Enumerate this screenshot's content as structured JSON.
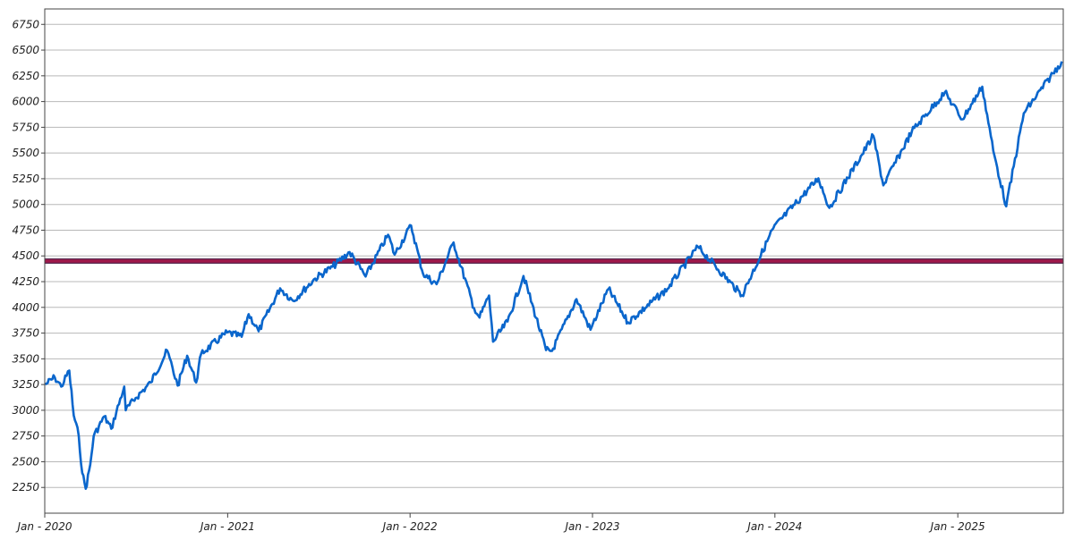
{
  "chart_data": {
    "type": "line",
    "title": "",
    "xlabel": "",
    "ylabel": "",
    "ylim": [
      2000,
      6900
    ],
    "xlim": [
      "2020-01-01",
      "2025-07-31"
    ],
    "grid": {
      "horizontal": true,
      "vertical": false
    },
    "x_tick_labels": [
      "Jan - 2020",
      "Jan - 2021",
      "Jan - 2022",
      "Jan - 2023",
      "Jan - 2024",
      "Jan - 2025"
    ],
    "x_tick_dates": [
      "2020-01-01",
      "2021-01-01",
      "2022-01-01",
      "2023-01-01",
      "2024-01-01",
      "2025-01-01"
    ],
    "y_ticks": [
      2250,
      2500,
      2750,
      3000,
      3250,
      3500,
      3750,
      4000,
      4250,
      4500,
      4750,
      5000,
      5250,
      5500,
      5750,
      6000,
      6250,
      6500,
      6750
    ],
    "reference_line": {
      "value": 4450,
      "color": "#a0184a"
    },
    "series": [
      {
        "color": "#0a66cc",
        "points": [
          [
            "2020-01-02",
            3250
          ],
          [
            "2020-01-21",
            3320
          ],
          [
            "2020-02-03",
            3230
          ],
          [
            "2020-02-19",
            3386
          ],
          [
            "2020-02-28",
            2950
          ],
          [
            "2020-03-09",
            2750
          ],
          [
            "2020-03-16",
            2390
          ],
          [
            "2020-03-23",
            2237
          ],
          [
            "2020-04-01",
            2470
          ],
          [
            "2020-04-08",
            2750
          ],
          [
            "2020-04-29",
            2940
          ],
          [
            "2020-05-13",
            2820
          ],
          [
            "2020-06-08",
            3230
          ],
          [
            "2020-06-11",
            3000
          ],
          [
            "2020-07-01",
            3120
          ],
          [
            "2020-07-31",
            3270
          ],
          [
            "2020-09-02",
            3580
          ],
          [
            "2020-09-23",
            3240
          ],
          [
            "2020-10-12",
            3530
          ],
          [
            "2020-10-30",
            3270
          ],
          [
            "2020-11-09",
            3550
          ],
          [
            "2020-12-31",
            3756
          ],
          [
            "2021-01-29",
            3714
          ],
          [
            "2021-02-12",
            3934
          ],
          [
            "2021-03-04",
            3768
          ],
          [
            "2021-04-16",
            4185
          ],
          [
            "2021-05-12",
            4063
          ],
          [
            "2021-06-25",
            4280
          ],
          [
            "2021-07-30",
            4395
          ],
          [
            "2021-09-02",
            4537
          ],
          [
            "2021-10-04",
            4300
          ],
          [
            "2021-11-18",
            4705
          ],
          [
            "2021-12-01",
            4513
          ],
          [
            "2022-01-03",
            4796
          ],
          [
            "2022-01-27",
            4326
          ],
          [
            "2022-02-23",
            4225
          ],
          [
            "2022-03-29",
            4631
          ],
          [
            "2022-05-09",
            3991
          ],
          [
            "2022-05-20",
            3901
          ],
          [
            "2022-06-08",
            4115
          ],
          [
            "2022-06-16",
            3666
          ],
          [
            "2022-07-15",
            3863
          ],
          [
            "2022-08-16",
            4305
          ],
          [
            "2022-09-30",
            3585
          ],
          [
            "2022-10-12",
            3577
          ],
          [
            "2022-11-30",
            4080
          ],
          [
            "2022-12-28",
            3783
          ],
          [
            "2023-02-02",
            4179
          ],
          [
            "2023-03-13",
            3855
          ],
          [
            "2023-05-31",
            4180
          ],
          [
            "2023-07-31",
            4589
          ],
          [
            "2023-10-27",
            4117
          ],
          [
            "2023-12-29",
            4770
          ],
          [
            "2024-03-28",
            5254
          ],
          [
            "2024-04-19",
            4967
          ],
          [
            "2024-07-16",
            5667
          ],
          [
            "2024-08-05",
            5186
          ],
          [
            "2024-10-01",
            5709
          ],
          [
            "2024-12-06",
            6090
          ],
          [
            "2025-01-10",
            5827
          ],
          [
            "2025-02-19",
            6144
          ],
          [
            "2025-03-13",
            5521
          ],
          [
            "2025-04-08",
            4982
          ],
          [
            "2025-05-13",
            5886
          ],
          [
            "2025-07-28",
            6390
          ]
        ]
      }
    ]
  }
}
